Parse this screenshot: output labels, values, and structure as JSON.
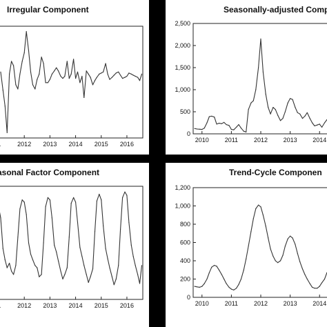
{
  "chart_data": [
    {
      "id": "irr",
      "type": "line",
      "title": "Irregular Component",
      "x_ticks": [
        "1",
        "2012",
        "2013",
        "2014",
        "2015",
        "2016"
      ],
      "y_ticks": [],
      "grid": false,
      "x": [
        2011.08,
        2011.17,
        2011.25,
        2011.33,
        2011.42,
        2011.5,
        2011.58,
        2011.67,
        2011.75,
        2011.83,
        2011.92,
        2012.0,
        2012.08,
        2012.17,
        2012.25,
        2012.33,
        2012.42,
        2012.5,
        2012.58,
        2012.67,
        2012.75,
        2012.83,
        2012.92,
        2013.0,
        2013.08,
        2013.17,
        2013.25,
        2013.33,
        2013.42,
        2013.5,
        2013.58,
        2013.67,
        2013.75,
        2013.83,
        2013.92,
        2014.0,
        2014.08,
        2014.17,
        2014.25,
        2014.33,
        2014.42,
        2014.5,
        2014.58,
        2014.67,
        2014.75,
        2014.83,
        2014.92,
        2015.0,
        2015.08,
        2015.17,
        2015.25,
        2015.33,
        2015.42,
        2015.5,
        2015.58,
        2015.67,
        2015.75,
        2015.83,
        2015.92,
        2016.0,
        2016.08,
        2016.17,
        2016.25,
        2016.33,
        2016.42,
        2016.5,
        2016.58
      ],
      "values": [
        0.62,
        0.45,
        0.3,
        0.05,
        0.6,
        0.72,
        0.68,
        0.5,
        0.46,
        0.6,
        0.72,
        0.8,
        1.0,
        0.82,
        0.62,
        0.5,
        0.46,
        0.55,
        0.6,
        0.76,
        0.7,
        0.52,
        0.52,
        0.55,
        0.6,
        0.63,
        0.66,
        0.63,
        0.58,
        0.56,
        0.58,
        0.72,
        0.56,
        0.6,
        0.74,
        0.56,
        0.62,
        0.52,
        0.58,
        0.38,
        0.63,
        0.6,
        0.57,
        0.5,
        0.54,
        0.57,
        0.6,
        0.61,
        0.62,
        0.7,
        0.6,
        0.55,
        0.57,
        0.59,
        0.61,
        0.62,
        0.59,
        0.56,
        0.57,
        0.58,
        0.61,
        0.6,
        0.59,
        0.58,
        0.57,
        0.54,
        0.6
      ],
      "xlim": [
        2011.0,
        2016.62
      ],
      "ylim": [
        0.0,
        1.05
      ]
    },
    {
      "id": "sa",
      "type": "line",
      "title": "Seasonally-adjusted Compo",
      "x_ticks": [
        "2010",
        "2011",
        "2012",
        "2013",
        "2014"
      ],
      "y_ticks": [
        "0",
        "500",
        "1,000",
        "1,500",
        "2,000",
        "2,500"
      ],
      "grid": false,
      "x": [
        2009.75,
        2009.83,
        2009.92,
        2010.0,
        2010.08,
        2010.17,
        2010.25,
        2010.33,
        2010.42,
        2010.5,
        2010.58,
        2010.67,
        2010.75,
        2010.83,
        2010.92,
        2011.0,
        2011.08,
        2011.17,
        2011.25,
        2011.33,
        2011.42,
        2011.5,
        2011.58,
        2011.67,
        2011.75,
        2011.83,
        2011.92,
        2012.0,
        2012.08,
        2012.17,
        2012.25,
        2012.33,
        2012.42,
        2012.5,
        2012.58,
        2012.67,
        2012.75,
        2012.83,
        2012.92,
        2013.0,
        2013.08,
        2013.17,
        2013.25,
        2013.33,
        2013.42,
        2013.5,
        2013.58,
        2013.67,
        2013.75,
        2013.83,
        2013.92,
        2014.0,
        2014.08,
        2014.17,
        2014.25
      ],
      "values": [
        120,
        110,
        105,
        100,
        130,
        250,
        390,
        400,
        380,
        220,
        240,
        230,
        260,
        210,
        190,
        100,
        90,
        150,
        210,
        130,
        60,
        40,
        550,
        700,
        750,
        1000,
        1500,
        2150,
        1400,
        900,
        600,
        450,
        600,
        550,
        420,
        300,
        350,
        500,
        700,
        800,
        780,
        600,
        480,
        450,
        350,
        400,
        480,
        350,
        250,
        180,
        200,
        220,
        150,
        250,
        320
      ],
      "xlim": [
        2009.7,
        2014.3
      ],
      "ylim": [
        0,
        2500
      ]
    },
    {
      "id": "sf",
      "type": "line",
      "title": "asonal Factor Component",
      "x_ticks": [
        "1",
        "2012",
        "2013",
        "2014",
        "2015",
        "2016"
      ],
      "y_ticks": [],
      "grid": false,
      "x": [
        2011.0,
        2011.08,
        2011.17,
        2011.25,
        2011.33,
        2011.42,
        2011.5,
        2011.58,
        2011.67,
        2011.75,
        2011.83,
        2011.92,
        2012.0,
        2012.08,
        2012.17,
        2012.25,
        2012.33,
        2012.42,
        2012.5,
        2012.58,
        2012.67,
        2012.75,
        2012.83,
        2012.92,
        2013.0,
        2013.08,
        2013.17,
        2013.25,
        2013.33,
        2013.42,
        2013.5,
        2013.58,
        2013.67,
        2013.75,
        2013.83,
        2013.92,
        2014.0,
        2014.08,
        2014.17,
        2014.25,
        2014.33,
        2014.42,
        2014.5,
        2014.58,
        2014.67,
        2014.75,
        2014.83,
        2014.92,
        2015.0,
        2015.08,
        2015.17,
        2015.25,
        2015.33,
        2015.42,
        2015.5,
        2015.58,
        2015.67,
        2015.75,
        2015.83,
        2015.92,
        2016.0,
        2016.08,
        2016.17,
        2016.25,
        2016.33,
        2016.42,
        2016.5,
        2016.58
      ],
      "values": [
        0.82,
        0.72,
        0.45,
        0.35,
        0.28,
        0.32,
        0.25,
        0.22,
        0.3,
        0.55,
        0.8,
        0.88,
        0.86,
        0.75,
        0.5,
        0.4,
        0.35,
        0.3,
        0.28,
        0.2,
        0.22,
        0.5,
        0.82,
        0.9,
        0.88,
        0.72,
        0.48,
        0.42,
        0.34,
        0.25,
        0.18,
        0.22,
        0.28,
        0.55,
        0.85,
        0.9,
        0.86,
        0.68,
        0.46,
        0.38,
        0.3,
        0.22,
        0.15,
        0.2,
        0.27,
        0.6,
        0.87,
        0.93,
        0.88,
        0.65,
        0.45,
        0.36,
        0.28,
        0.2,
        0.13,
        0.18,
        0.3,
        0.62,
        0.9,
        0.95,
        0.92,
        0.68,
        0.48,
        0.38,
        0.3,
        0.22,
        0.14,
        0.3
      ],
      "xlim": [
        2011.0,
        2016.62
      ],
      "ylim": [
        0.0,
        1.0
      ]
    },
    {
      "id": "tc",
      "type": "line",
      "title": "Trend-Cycle Componen",
      "x_ticks": [
        "2010",
        "2011",
        "2012",
        "2013",
        "2014"
      ],
      "y_ticks": [
        "0",
        "200",
        "400",
        "600",
        "800",
        "1,000",
        "1,200"
      ],
      "grid": false,
      "x": [
        2009.75,
        2009.83,
        2009.92,
        2010.0,
        2010.08,
        2010.17,
        2010.25,
        2010.33,
        2010.42,
        2010.5,
        2010.58,
        2010.67,
        2010.75,
        2010.83,
        2010.92,
        2011.0,
        2011.08,
        2011.17,
        2011.25,
        2011.33,
        2011.42,
        2011.5,
        2011.58,
        2011.67,
        2011.75,
        2011.83,
        2011.92,
        2012.0,
        2012.08,
        2012.17,
        2012.25,
        2012.33,
        2012.42,
        2012.5,
        2012.58,
        2012.67,
        2012.75,
        2012.83,
        2012.92,
        2013.0,
        2013.08,
        2013.17,
        2013.25,
        2013.33,
        2013.42,
        2013.5,
        2013.58,
        2013.67,
        2013.75,
        2013.83,
        2013.92,
        2014.0,
        2014.08,
        2014.17,
        2014.25
      ],
      "values": [
        120,
        115,
        110,
        120,
        150,
        200,
        270,
        330,
        350,
        340,
        300,
        250,
        200,
        150,
        110,
        90,
        80,
        100,
        140,
        200,
        300,
        420,
        560,
        720,
        860,
        970,
        1010,
        990,
        900,
        780,
        650,
        530,
        450,
        400,
        380,
        400,
        460,
        560,
        640,
        670,
        650,
        580,
        480,
        390,
        310,
        250,
        200,
        150,
        110,
        100,
        100,
        120,
        160,
        200,
        270
      ],
      "xlim": [
        2009.7,
        2014.3
      ],
      "ylim": [
        0,
        1200
      ]
    }
  ]
}
